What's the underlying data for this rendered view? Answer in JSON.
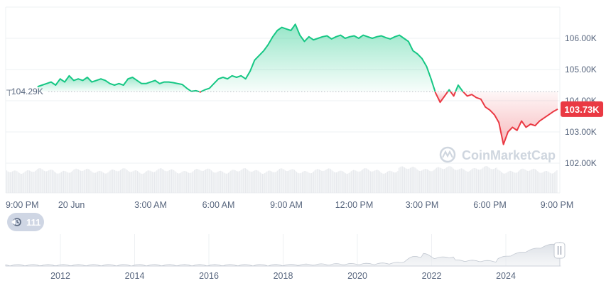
{
  "chart_data": {
    "type": "area",
    "baseline_value": 104290,
    "baseline_label": "104.29K",
    "current_value": 103730,
    "current_label": "103.73K",
    "y_ticks": [
      {
        "value": 106000,
        "label": "106.00K"
      },
      {
        "value": 105000,
        "label": "105.00K"
      },
      {
        "value": 104000,
        "label": "104.00K"
      },
      {
        "value": 103000,
        "label": "103.00K"
      },
      {
        "value": 102000,
        "label": "102.00K"
      }
    ],
    "ylim": [
      101100,
      107400
    ],
    "x_ticks": [
      {
        "hour": 0,
        "label": "9:00 PM"
      },
      {
        "hour": 2.5,
        "label": "20 Jun"
      },
      {
        "hour": 6,
        "label": "3:00 AM"
      },
      {
        "hour": 9,
        "label": "6:00 AM"
      },
      {
        "hour": 12,
        "label": "9:00 AM"
      },
      {
        "hour": 15,
        "label": "12:00 PM"
      },
      {
        "hour": 18,
        "label": "3:00 PM"
      },
      {
        "hour": 21,
        "label": "6:00 PM"
      },
      {
        "hour": 24,
        "label": "9:00 PM"
      }
    ],
    "series": [
      {
        "points": [
          [
            1.0,
            104450
          ],
          [
            1.2,
            104500
          ],
          [
            1.4,
            104550
          ],
          [
            1.6,
            104600
          ],
          [
            1.8,
            104500
          ],
          [
            2.0,
            104700
          ],
          [
            2.2,
            104600
          ],
          [
            2.4,
            104800
          ],
          [
            2.6,
            104650
          ],
          [
            2.8,
            104700
          ],
          [
            3.0,
            104650
          ],
          [
            3.2,
            104750
          ],
          [
            3.4,
            104600
          ],
          [
            3.6,
            104650
          ],
          [
            3.8,
            104700
          ],
          [
            4.0,
            104650
          ],
          [
            4.2,
            104550
          ],
          [
            4.4,
            104500
          ],
          [
            4.6,
            104550
          ],
          [
            4.8,
            104500
          ],
          [
            5.0,
            104700
          ],
          [
            5.2,
            104750
          ],
          [
            5.4,
            104650
          ],
          [
            5.6,
            104550
          ],
          [
            5.8,
            104550
          ],
          [
            6.0,
            104600
          ],
          [
            6.2,
            104650
          ],
          [
            6.4,
            104550
          ],
          [
            6.6,
            104600
          ],
          [
            6.8,
            104600
          ],
          [
            7.0,
            104580
          ],
          [
            7.2,
            104550
          ],
          [
            7.4,
            104520
          ],
          [
            7.6,
            104400
          ],
          [
            7.8,
            104300
          ],
          [
            8.0,
            104320
          ],
          [
            8.2,
            104280
          ],
          [
            8.4,
            104350
          ],
          [
            8.6,
            104400
          ],
          [
            8.8,
            104550
          ],
          [
            9.0,
            104700
          ],
          [
            9.2,
            104750
          ],
          [
            9.4,
            104700
          ],
          [
            9.6,
            104800
          ],
          [
            9.8,
            104750
          ],
          [
            10.0,
            104800
          ],
          [
            10.2,
            104700
          ],
          [
            10.4,
            104950
          ],
          [
            10.6,
            105300
          ],
          [
            10.8,
            105450
          ],
          [
            11.0,
            105600
          ],
          [
            11.2,
            105800
          ],
          [
            11.4,
            106050
          ],
          [
            11.6,
            106250
          ],
          [
            11.8,
            106350
          ],
          [
            12.0,
            106300
          ],
          [
            12.2,
            106250
          ],
          [
            12.4,
            106450
          ],
          [
            12.6,
            106100
          ],
          [
            12.8,
            105900
          ],
          [
            13.0,
            106050
          ],
          [
            13.2,
            105950
          ],
          [
            13.4,
            106000
          ],
          [
            13.6,
            106050
          ],
          [
            13.8,
            106080
          ],
          [
            14.0,
            105980
          ],
          [
            14.2,
            106050
          ],
          [
            14.4,
            106100
          ],
          [
            14.6,
            106000
          ],
          [
            14.8,
            106050
          ],
          [
            15.0,
            106080
          ],
          [
            15.2,
            106000
          ],
          [
            15.4,
            106100
          ],
          [
            15.6,
            106050
          ],
          [
            15.8,
            106000
          ],
          [
            16.0,
            106050
          ],
          [
            16.2,
            106080
          ],
          [
            16.4,
            106020
          ],
          [
            16.6,
            105980
          ],
          [
            16.8,
            106050
          ],
          [
            17.0,
            106100
          ],
          [
            17.2,
            106000
          ],
          [
            17.4,
            105900
          ],
          [
            17.6,
            105600
          ],
          [
            17.8,
            105500
          ],
          [
            18.0,
            105350
          ],
          [
            18.2,
            105100
          ],
          [
            18.4,
            104700
          ],
          [
            18.6,
            104250
          ],
          [
            18.8,
            103950
          ],
          [
            19.0,
            104150
          ],
          [
            19.2,
            104350
          ],
          [
            19.4,
            104150
          ],
          [
            19.6,
            104500
          ],
          [
            19.8,
            104300
          ],
          [
            20.0,
            104150
          ],
          [
            20.2,
            104200
          ],
          [
            20.4,
            104100
          ],
          [
            20.6,
            104050
          ],
          [
            20.8,
            103800
          ],
          [
            21.0,
            103700
          ],
          [
            21.2,
            103550
          ],
          [
            21.4,
            103300
          ],
          [
            21.6,
            102600
          ],
          [
            21.8,
            103000
          ],
          [
            22.0,
            103150
          ],
          [
            22.2,
            103050
          ],
          [
            22.4,
            103350
          ],
          [
            22.6,
            103150
          ],
          [
            22.8,
            103250
          ],
          [
            23.0,
            103200
          ],
          [
            23.2,
            103350
          ],
          [
            23.4,
            103450
          ],
          [
            23.6,
            103550
          ],
          [
            23.8,
            103650
          ],
          [
            24.0,
            103730
          ]
        ]
      }
    ],
    "up_color": "#16c784",
    "down_color": "#ea3943",
    "watermark": "CoinMarketCap",
    "volume_label": "",
    "grid": true
  },
  "history_badge": {
    "icon": "history-icon",
    "count": "111"
  },
  "navigator": {
    "year_labels": [
      "2012",
      "2014",
      "2016",
      "2018",
      "2020",
      "2022",
      "2024"
    ],
    "handle_icon": "drag-handle-icon"
  }
}
